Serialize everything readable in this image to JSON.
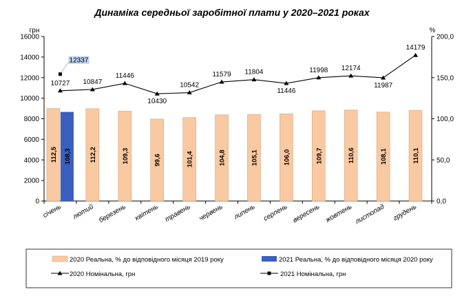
{
  "chart_data": {
    "type": "bar",
    "title": "Динаміка середньої заробітної плати у 2020–2021 роках",
    "y_left_unit": "грн",
    "y_right_unit": "%",
    "y_left_range": [
      0,
      16000
    ],
    "y_left_ticks": [
      "0",
      "2000",
      "4000",
      "6000",
      "8000",
      "10000",
      "12000",
      "14000",
      "16000"
    ],
    "y_right_range": [
      0,
      200
    ],
    "y_right_ticks": [
      "0,0",
      "50,0",
      "100,0",
      "150,0",
      "200,0"
    ],
    "categories": [
      "січень",
      "лютий",
      "березень",
      "квітень",
      "травень",
      "червень",
      "липень",
      "серпень",
      "вересень",
      "жовтень",
      "листопад",
      "грудень"
    ],
    "series": [
      {
        "name": "2020 Реальна, % до відповідного місяця 2019 року",
        "kind": "bar",
        "axis": "right",
        "color": "#F9C9A1",
        "values": [
          112.5,
          112.2,
          109.3,
          99.6,
          101.4,
          104.8,
          105.1,
          106.0,
          109.7,
          110.6,
          108.1,
          110.1
        ],
        "labels": [
          "112,5",
          "112,2",
          "109,3",
          "99,6",
          "101,4",
          "104,8",
          "105,1",
          "106,0",
          "109,7",
          "110,6",
          "108,1",
          "110,1"
        ]
      },
      {
        "name": "2021 Реальна, % до відповідного місяця 2020 року",
        "kind": "bar",
        "axis": "right",
        "color": "#3A5FBF",
        "values": [
          108.3,
          null,
          null,
          null,
          null,
          null,
          null,
          null,
          null,
          null,
          null,
          null
        ],
        "labels": [
          "108,3",
          "",
          "",
          "",
          "",
          "",
          "",
          "",
          "",
          "",
          "",
          ""
        ]
      },
      {
        "name": "2020 Номінальна, грн",
        "kind": "line",
        "axis": "left",
        "marker": "triangle",
        "values": [
          10727,
          10847,
          11446,
          10430,
          10542,
          11579,
          11804,
          11446,
          11998,
          12174,
          11987,
          14179
        ],
        "labels": [
          "10727",
          "10847",
          "11446",
          "10430",
          "10542",
          "11579",
          "11804",
          "11446",
          "11998",
          "12174",
          "11987",
          "14179"
        ]
      },
      {
        "name": "2021 Номінальна, грн",
        "kind": "line",
        "axis": "left",
        "marker": "square",
        "values": [
          12337,
          null,
          null,
          null,
          null,
          null,
          null,
          null,
          null,
          null,
          null,
          null
        ],
        "labels": [
          "12337",
          "",
          "",
          "",
          "",
          "",
          "",
          "",
          "",
          "",
          "",
          ""
        ]
      }
    ],
    "legend_position": "bottom",
    "grid": false
  }
}
